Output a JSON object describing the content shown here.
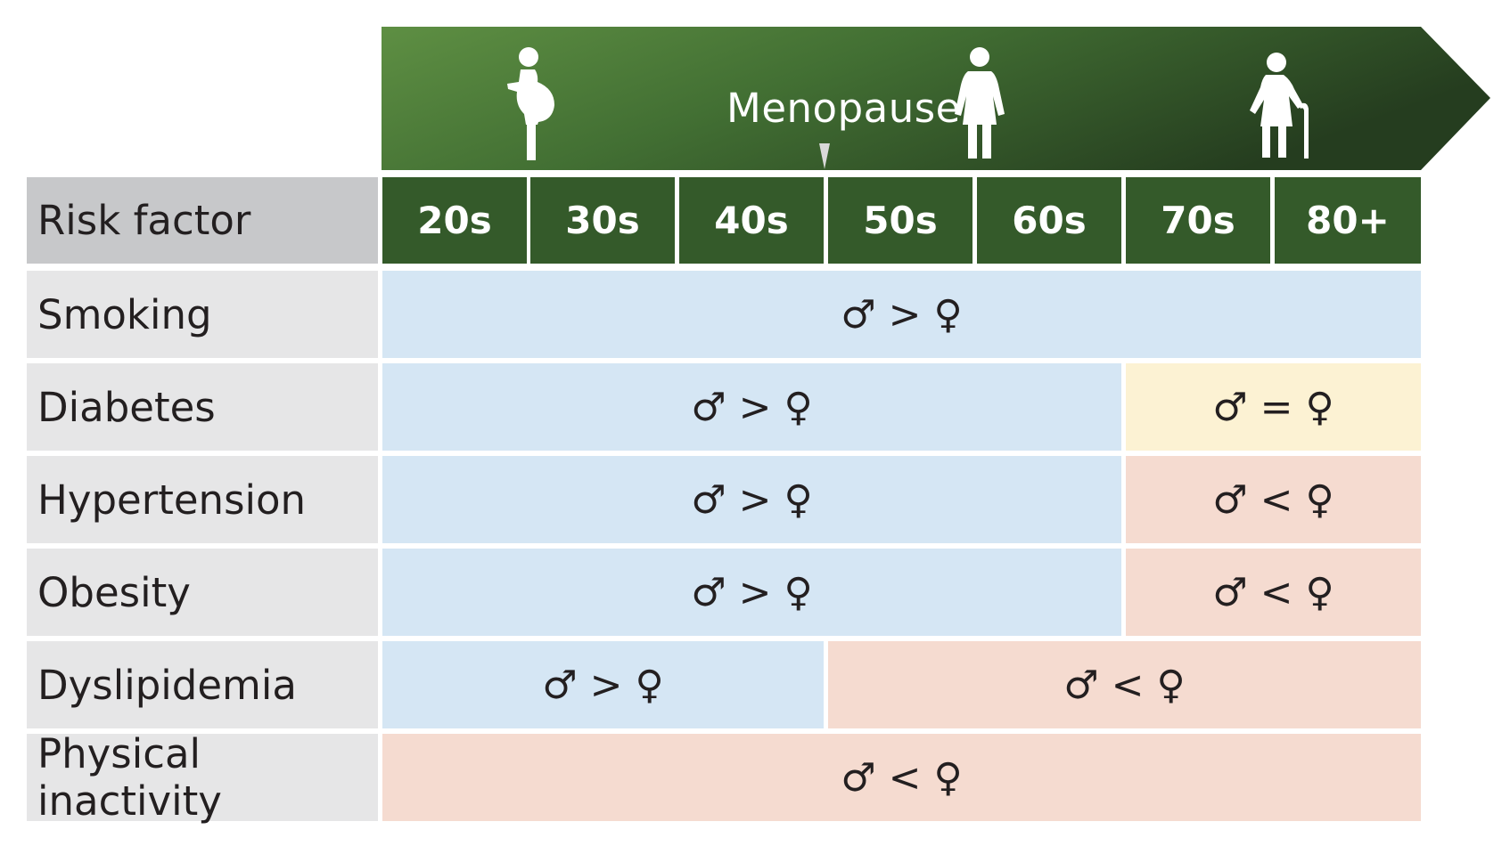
{
  "banner": {
    "label": "Menopause",
    "figures": [
      "pregnant-woman-icon",
      "woman-icon",
      "elderly-woman-with-cane-icon"
    ],
    "colors": {
      "light": "#5e8f43",
      "dark": "#253d1f"
    }
  },
  "table": {
    "header_label": "Risk factor",
    "decades": [
      "20s",
      "30s",
      "40s",
      "50s",
      "60s",
      "70s",
      "80+"
    ],
    "rows": [
      {
        "label": "Smoking",
        "bands": [
          {
            "text": "♂ > ♀",
            "from": "20s",
            "to": "80+",
            "tone": "male-higher"
          }
        ]
      },
      {
        "label": "Diabetes",
        "bands": [
          {
            "text": "♂ > ♀",
            "from": "20s",
            "to": "60s",
            "tone": "male-higher"
          },
          {
            "text": "♂ = ♀",
            "from": "70s",
            "to": "80+",
            "tone": "equal"
          }
        ]
      },
      {
        "label": "Hypertension",
        "bands": [
          {
            "text": "♂ > ♀",
            "from": "20s",
            "to": "60s",
            "tone": "male-higher"
          },
          {
            "text": "♂ < ♀",
            "from": "70s",
            "to": "80+",
            "tone": "female-higher"
          }
        ]
      },
      {
        "label": "Obesity",
        "bands": [
          {
            "text": "♂ > ♀",
            "from": "20s",
            "to": "60s",
            "tone": "male-higher"
          },
          {
            "text": "♂ < ♀",
            "from": "70s",
            "to": "80+",
            "tone": "female-higher"
          }
        ]
      },
      {
        "label": "Dyslipidemia",
        "bands": [
          {
            "text": "♂ > ♀",
            "from": "20s",
            "to": "40s",
            "tone": "male-higher"
          },
          {
            "text": "♂ < ♀",
            "from": "50s",
            "to": "80+",
            "tone": "female-higher"
          }
        ]
      },
      {
        "label": "Physical inactivity",
        "bands": [
          {
            "text": "♂ < ♀",
            "from": "20s",
            "to": "80+",
            "tone": "female-higher"
          }
        ]
      }
    ],
    "tone_colors": {
      "male-higher": "#d5e6f4",
      "equal": "#fcf2d3",
      "female-higher": "#f5dbd0"
    }
  }
}
